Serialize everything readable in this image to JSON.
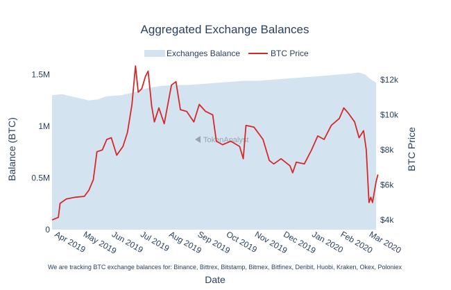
{
  "chart_data": {
    "type": "area+line",
    "title": "Aggregated Exchange Balances",
    "xlabel": "Date",
    "ylabel_left": "Balance (BTC)",
    "ylabel_right": "BTC Price",
    "footnote": "We are tracking BTC exchange balances for: Binance, Bittrex, Bitstamp, Bitmex, Bitfinex, Deribit, Huobi, Kraken, Okex, Poloniex",
    "watermark": "TokenAnalyst",
    "legend_position": "top-center",
    "grid": false,
    "x_ticks": [
      "Apr 2019",
      "May 2019",
      "Jun 2019",
      "Jul 2019",
      "Aug 2019",
      "Sep 2019",
      "Oct 2019",
      "Nov 2019",
      "Dec 2019",
      "Jan 2020",
      "Feb 2020",
      "Mar 2020"
    ],
    "y_left": {
      "ticks": [
        "0",
        "0.5M",
        "1M",
        "1.5M"
      ],
      "tick_values": [
        0,
        500000,
        1000000,
        1500000
      ],
      "range": [
        0,
        1550000
      ]
    },
    "y_right": {
      "ticks": [
        "$4k",
        "$6k",
        "$8k",
        "$10k",
        "$12k"
      ],
      "tick_values": [
        4000,
        6000,
        8000,
        10000,
        12000
      ],
      "range": [
        3450,
        12600
      ]
    },
    "series": [
      {
        "name": "Exchanges Balance",
        "kind": "area",
        "axis": "left",
        "color": "#d3e4f0",
        "points": [
          [
            "2019-03-25",
            1300000
          ],
          [
            "2019-04-05",
            1310000
          ],
          [
            "2019-04-20",
            1280000
          ],
          [
            "2019-05-05",
            1250000
          ],
          [
            "2019-05-15",
            1260000
          ],
          [
            "2019-05-25",
            1290000
          ],
          [
            "2019-06-10",
            1300000
          ],
          [
            "2019-06-25",
            1330000
          ],
          [
            "2019-07-10",
            1370000
          ],
          [
            "2019-07-25",
            1390000
          ],
          [
            "2019-08-10",
            1400000
          ],
          [
            "2019-08-25",
            1400000
          ],
          [
            "2019-09-10",
            1410000
          ],
          [
            "2019-09-25",
            1420000
          ],
          [
            "2019-10-10",
            1430000
          ],
          [
            "2019-10-25",
            1440000
          ],
          [
            "2019-11-10",
            1440000
          ],
          [
            "2019-11-25",
            1450000
          ],
          [
            "2019-12-10",
            1460000
          ],
          [
            "2019-12-25",
            1470000
          ],
          [
            "2020-01-10",
            1480000
          ],
          [
            "2020-01-25",
            1490000
          ],
          [
            "2020-02-05",
            1500000
          ],
          [
            "2020-02-20",
            1510000
          ],
          [
            "2020-03-01",
            1520000
          ],
          [
            "2020-03-08",
            1500000
          ],
          [
            "2020-03-13",
            1460000
          ],
          [
            "2020-03-20",
            1420000
          ]
        ]
      },
      {
        "name": "BTC Price",
        "kind": "line",
        "axis": "right",
        "color": "#d62728",
        "points": [
          [
            "2019-03-25",
            4000
          ],
          [
            "2019-04-01",
            4150
          ],
          [
            "2019-04-03",
            4950
          ],
          [
            "2019-04-10",
            5200
          ],
          [
            "2019-04-20",
            5300
          ],
          [
            "2019-04-30",
            5350
          ],
          [
            "2019-05-05",
            5700
          ],
          [
            "2019-05-10",
            6300
          ],
          [
            "2019-05-14",
            7900
          ],
          [
            "2019-05-20",
            8000
          ],
          [
            "2019-05-25",
            8600
          ],
          [
            "2019-05-30",
            8700
          ],
          [
            "2019-06-05",
            7700
          ],
          [
            "2019-06-12",
            8200
          ],
          [
            "2019-06-17",
            9000
          ],
          [
            "2019-06-22",
            10600
          ],
          [
            "2019-06-26",
            12800
          ],
          [
            "2019-06-29",
            11300
          ],
          [
            "2019-07-03",
            11500
          ],
          [
            "2019-07-07",
            12200
          ],
          [
            "2019-07-10",
            12500
          ],
          [
            "2019-07-14",
            10500
          ],
          [
            "2019-07-17",
            9600
          ],
          [
            "2019-07-22",
            10400
          ],
          [
            "2019-07-28",
            9500
          ],
          [
            "2019-08-05",
            11700
          ],
          [
            "2019-08-10",
            11900
          ],
          [
            "2019-08-15",
            10300
          ],
          [
            "2019-08-22",
            10200
          ],
          [
            "2019-08-30",
            9600
          ],
          [
            "2019-09-05",
            10600
          ],
          [
            "2019-09-12",
            10200
          ],
          [
            "2019-09-20",
            10000
          ],
          [
            "2019-09-24",
            8500
          ],
          [
            "2019-10-01",
            8300
          ],
          [
            "2019-10-10",
            8500
          ],
          [
            "2019-10-20",
            8200
          ],
          [
            "2019-10-24",
            7500
          ],
          [
            "2019-10-27",
            9400
          ],
          [
            "2019-11-05",
            9300
          ],
          [
            "2019-11-15",
            8600
          ],
          [
            "2019-11-22",
            7400
          ],
          [
            "2019-11-27",
            7200
          ],
          [
            "2019-12-05",
            7500
          ],
          [
            "2019-12-15",
            7100
          ],
          [
            "2019-12-18",
            6700
          ],
          [
            "2019-12-22",
            7300
          ],
          [
            "2019-12-31",
            7200
          ],
          [
            "2020-01-08",
            8000
          ],
          [
            "2020-01-15",
            8800
          ],
          [
            "2020-01-22",
            8600
          ],
          [
            "2020-01-30",
            9400
          ],
          [
            "2020-02-08",
            9800
          ],
          [
            "2020-02-13",
            10400
          ],
          [
            "2020-02-18",
            10100
          ],
          [
            "2020-02-25",
            9600
          ],
          [
            "2020-03-01",
            8700
          ],
          [
            "2020-03-06",
            9100
          ],
          [
            "2020-03-09",
            8000
          ],
          [
            "2020-03-12",
            5000
          ],
          [
            "2020-03-14",
            5300
          ],
          [
            "2020-03-16",
            5000
          ],
          [
            "2020-03-18",
            5600
          ],
          [
            "2020-03-20",
            6200
          ],
          [
            "2020-03-22",
            6600
          ]
        ]
      }
    ]
  }
}
